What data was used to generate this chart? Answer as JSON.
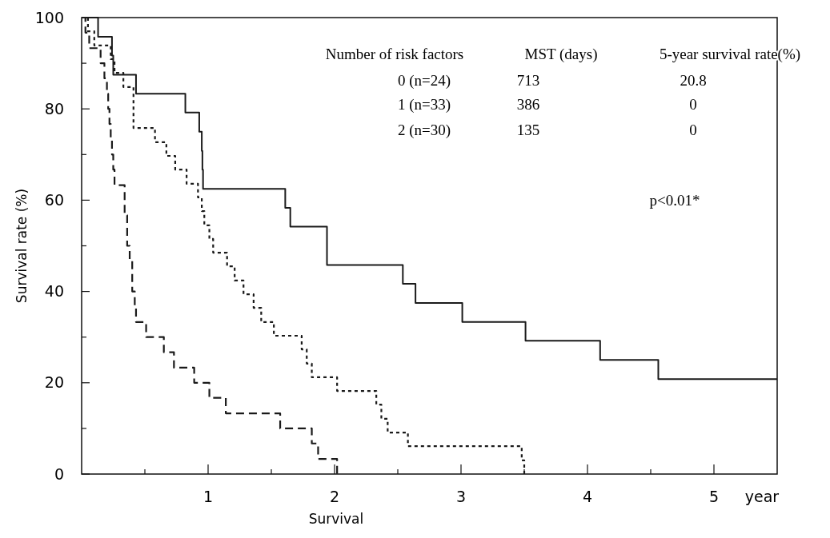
{
  "chart_data": {
    "type": "step",
    "xlabel": "Survival",
    "ylabel": "Survival rate  (%)",
    "xlim": [
      0,
      5.5
    ],
    "ylim": [
      0,
      100
    ],
    "xticks": [
      {
        "value": 0.5,
        "label": null
      },
      1,
      {
        "value": 1.5,
        "label": null
      },
      2,
      {
        "value": 2.5,
        "label": null
      },
      3,
      {
        "value": 3.5,
        "label": null
      },
      4,
      {
        "value": 4.5,
        "label": null
      },
      5
    ],
    "yticks": [
      0,
      {
        "value": 10,
        "label": null
      },
      20,
      {
        "value": 30,
        "label": null
      },
      40,
      {
        "value": 50,
        "label": null
      },
      60,
      {
        "value": 70,
        "label": null
      },
      80,
      {
        "value": 90,
        "label": null
      },
      100
    ],
    "grid": false,
    "series": [
      {
        "color": "#1a1a1a",
        "line_style": "solid",
        "x": [
          0,
          0.13,
          0.24,
          0.25,
          0.43,
          0.82,
          0.93,
          0.95,
          0.955,
          0.96,
          1.61,
          1.65,
          1.94,
          2.54,
          2.64,
          3.01,
          3.51,
          4.1,
          4.56,
          5.5
        ],
        "values": [
          100,
          95.8,
          91.7,
          87.5,
          83.3,
          79.2,
          75,
          70.8,
          66.7,
          62.5,
          58.3,
          54.2,
          45.8,
          41.7,
          37.5,
          33.3,
          29.2,
          25,
          20.8,
          20.8
        ]
      },
      {
        "color": "#1a1a1a",
        "line_style": "dotted",
        "x": [
          0,
          0.05,
          0.1,
          0.23,
          0.26,
          0.33,
          0.41,
          0.58,
          0.67,
          0.74,
          0.83,
          0.92,
          0.95,
          0.97,
          1.01,
          1.04,
          1.15,
          1.21,
          1.28,
          1.36,
          1.42,
          1.52,
          1.74,
          1.78,
          1.82,
          2.02,
          2.33,
          2.37,
          2.42,
          2.58,
          3.48,
          3.5
        ],
        "values": [
          100,
          97,
          93.9,
          90.9,
          87.9,
          84.8,
          75.8,
          72.7,
          69.7,
          66.7,
          63.6,
          60.6,
          57.6,
          54.5,
          51.5,
          48.5,
          45.5,
          42.4,
          39.4,
          36.4,
          33.3,
          30.3,
          27.3,
          24.2,
          21.2,
          18.2,
          15.2,
          12.1,
          9.1,
          6.1,
          3,
          0
        ]
      },
      {
        "color": "#1a1a1a",
        "line_style": "dashed",
        "x": [
          0,
          0.03,
          0.06,
          0.15,
          0.18,
          0.2,
          0.21,
          0.22,
          0.23,
          0.24,
          0.25,
          0.26,
          0.34,
          0.36,
          0.38,
          0.4,
          0.42,
          0.43,
          0.51,
          0.65,
          0.73,
          0.89,
          1.01,
          1.14,
          1.57,
          1.82,
          1.87,
          2.02,
          2.03
        ],
        "values": [
          100,
          96.7,
          93.3,
          90,
          86.7,
          83.3,
          80,
          76.7,
          73.3,
          70,
          66.7,
          63.3,
          56.7,
          50,
          46.7,
          40,
          36.7,
          33.3,
          30,
          26.7,
          23.3,
          20,
          16.7,
          13.3,
          10,
          6.7,
          3.3,
          0,
          0
        ]
      }
    ],
    "annotations": [
      "Number of risk factors",
      "MST (days)",
      "5-year survival rate(%)",
      "0  (n=24)",
      "713",
      "20.8",
      "1  (n=33)",
      "386",
      "0",
      "2  (n=30)",
      "135",
      "0",
      "p<0.01*",
      "year"
    ]
  }
}
